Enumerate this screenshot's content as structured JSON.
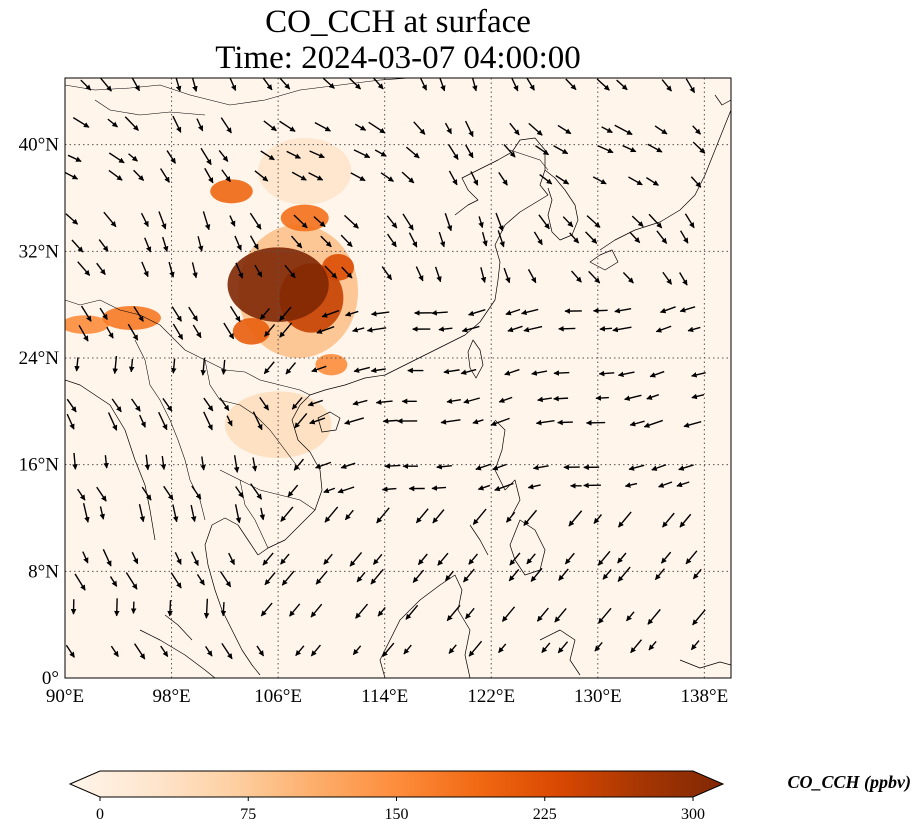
{
  "title": {
    "line1": "CO_CCH at surface",
    "line2": "Time: 2024-03-07 04:00:00"
  },
  "map": {
    "extent": {
      "lon_min": 90,
      "lon_max": 140,
      "lat_min": 0,
      "lat_max": 45
    },
    "gridlines": "dotted",
    "lon_ticks": [
      {
        "value": 90,
        "label": "90°E"
      },
      {
        "value": 98,
        "label": "98°E"
      },
      {
        "value": 106,
        "label": "106°E"
      },
      {
        "value": 114,
        "label": "114°E"
      },
      {
        "value": 122,
        "label": "122°E"
      },
      {
        "value": 130,
        "label": "130°E"
      },
      {
        "value": 138,
        "label": "138°E"
      }
    ],
    "lat_ticks": [
      {
        "value": 0,
        "label": "0°"
      },
      {
        "value": 8,
        "label": "8°N"
      },
      {
        "value": 16,
        "label": "16°N"
      },
      {
        "value": 24,
        "label": "24°N"
      },
      {
        "value": 32,
        "label": "32°N"
      },
      {
        "value": 40,
        "label": "40°N"
      }
    ],
    "background_color": "#fff5eb",
    "wind_vectors_shown": true
  },
  "concentration_patches": [
    {
      "lon": 106.0,
      "lat": 29.5,
      "rx": 3.8,
      "ry": 2.8,
      "value": 300
    },
    {
      "lon": 108.5,
      "lat": 28.5,
      "rx": 2.4,
      "ry": 2.6,
      "value": 240
    },
    {
      "lon": 110.5,
      "lat": 30.8,
      "rx": 1.2,
      "ry": 1.0,
      "value": 220
    },
    {
      "lon": 104.0,
      "lat": 26.0,
      "rx": 1.4,
      "ry": 1.0,
      "value": 200
    },
    {
      "lon": 108.0,
      "lat": 34.5,
      "rx": 1.8,
      "ry": 1.0,
      "value": 180
    },
    {
      "lon": 102.5,
      "lat": 36.5,
      "rx": 1.6,
      "ry": 0.9,
      "value": 190
    },
    {
      "lon": 95.0,
      "lat": 27.0,
      "rx": 2.2,
      "ry": 0.9,
      "value": 170
    },
    {
      "lon": 110.0,
      "lat": 23.5,
      "rx": 1.2,
      "ry": 0.8,
      "value": 150
    },
    {
      "lon": 107.5,
      "lat": 29.0,
      "rx": 4.5,
      "ry": 5.0,
      "value": 90
    },
    {
      "lon": 106.0,
      "lat": 19.0,
      "rx": 4.0,
      "ry": 2.5,
      "value": 50
    },
    {
      "lon": 108.0,
      "lat": 38.0,
      "rx": 3.5,
      "ry": 2.5,
      "value": 40
    },
    {
      "lon": 91.5,
      "lat": 26.5,
      "rx": 1.8,
      "ry": 0.7,
      "value": 150
    }
  ],
  "colorbar": {
    "label": "CO_CCH (ppbv)",
    "min": 0,
    "max": 300,
    "extend": "both",
    "colors": [
      "#fff5eb",
      "#fee6ce",
      "#fdd0a2",
      "#fdae6b",
      "#fd8d3c",
      "#f16913",
      "#d94801",
      "#a63603",
      "#7f2704"
    ],
    "ticks": [
      {
        "value": 0,
        "label": "0"
      },
      {
        "value": 75,
        "label": "75"
      },
      {
        "value": 150,
        "label": "150"
      },
      {
        "value": 225,
        "label": "225"
      },
      {
        "value": 300,
        "label": "300"
      }
    ]
  }
}
